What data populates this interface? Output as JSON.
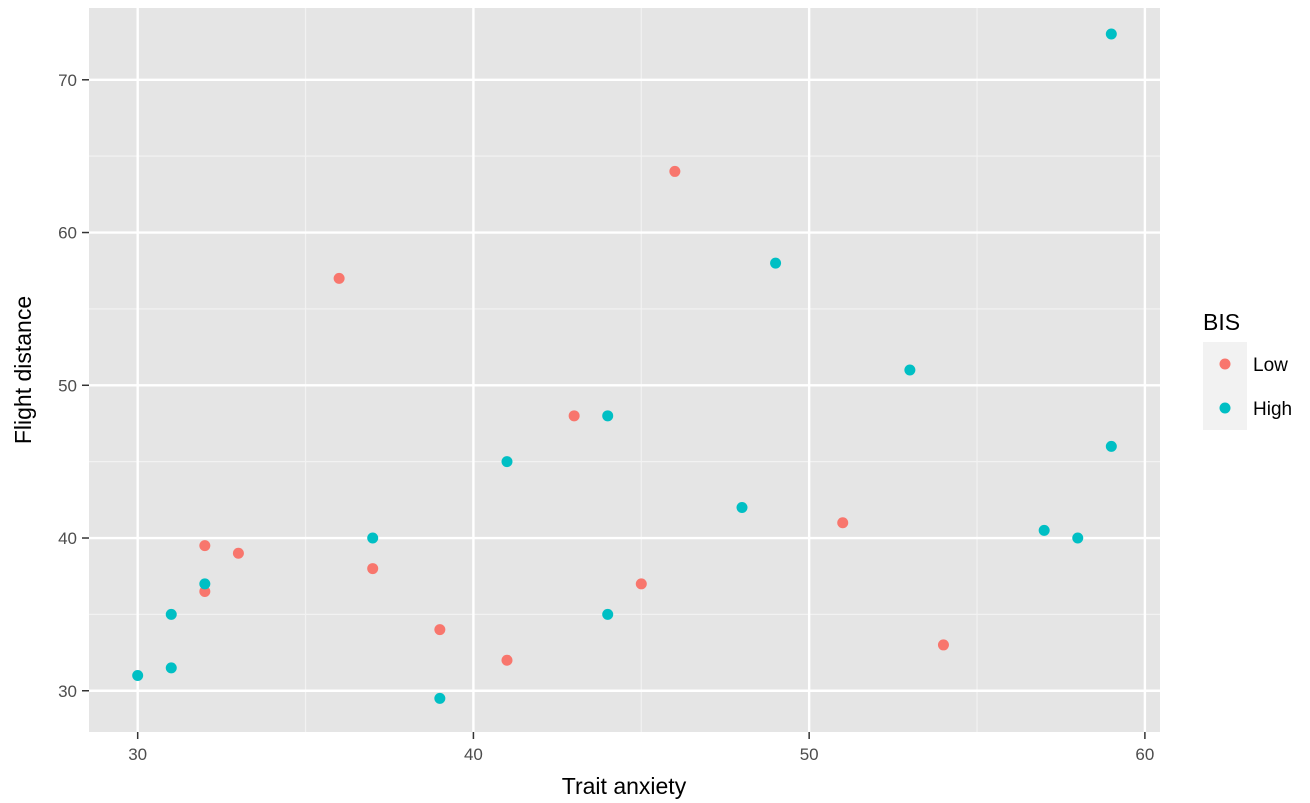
{
  "chart_data": {
    "type": "scatter",
    "title": "",
    "xlabel": "Trait anxiety",
    "ylabel": "Flight distance",
    "xlim": [
      28.55,
      60.45
    ],
    "ylim": [
      27.3,
      74.7
    ],
    "x_ticks": [
      30,
      40,
      50,
      60
    ],
    "y_ticks": [
      30,
      40,
      50,
      60,
      70
    ],
    "grid": true,
    "legend": {
      "title": "BIS",
      "position": "right"
    },
    "series": [
      {
        "name": "Low",
        "color": "#F8766D",
        "points": [
          {
            "x": 32,
            "y": 39.5
          },
          {
            "x": 32,
            "y": 36.5
          },
          {
            "x": 33,
            "y": 39
          },
          {
            "x": 36,
            "y": 57
          },
          {
            "x": 37,
            "y": 38
          },
          {
            "x": 39,
            "y": 34
          },
          {
            "x": 41,
            "y": 32
          },
          {
            "x": 43,
            "y": 48
          },
          {
            "x": 45,
            "y": 37
          },
          {
            "x": 46,
            "y": 64
          },
          {
            "x": 51,
            "y": 41
          },
          {
            "x": 54,
            "y": 33
          }
        ]
      },
      {
        "name": "High",
        "color": "#00BFC4",
        "points": [
          {
            "x": 30,
            "y": 31
          },
          {
            "x": 31,
            "y": 35
          },
          {
            "x": 31,
            "y": 31.5
          },
          {
            "x": 32,
            "y": 37
          },
          {
            "x": 37,
            "y": 40
          },
          {
            "x": 39,
            "y": 29.5
          },
          {
            "x": 41,
            "y": 45
          },
          {
            "x": 44,
            "y": 48
          },
          {
            "x": 44,
            "y": 35
          },
          {
            "x": 48,
            "y": 42
          },
          {
            "x": 49,
            "y": 58
          },
          {
            "x": 53,
            "y": 51
          },
          {
            "x": 57,
            "y": 40.5
          },
          {
            "x": 58,
            "y": 40
          },
          {
            "x": 59,
            "y": 73
          },
          {
            "x": 59,
            "y": 46
          }
        ]
      }
    ]
  }
}
